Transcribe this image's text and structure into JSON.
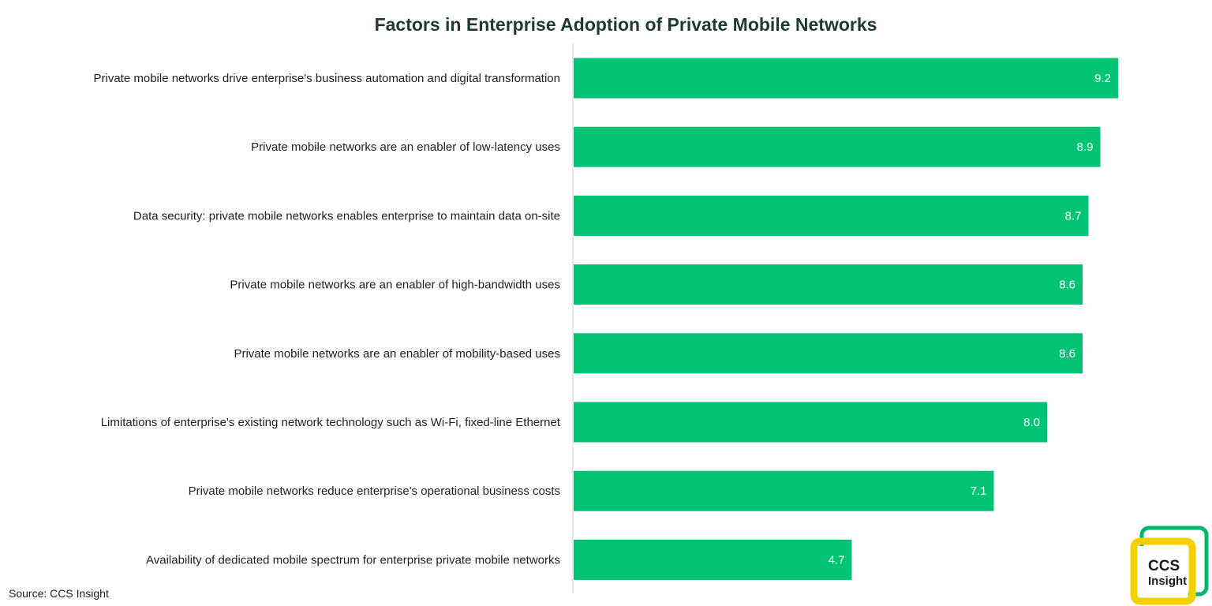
{
  "chart_data": {
    "type": "bar",
    "orientation": "horizontal",
    "title": "Factors in Enterprise Adoption of Private Mobile Networks",
    "xlabel": "",
    "ylabel": "",
    "xlim": [
      0,
      10
    ],
    "grid": false,
    "legend": "none",
    "categories": [
      "Private mobile networks drive enterprise's business automation and digital transformation",
      "Private mobile networks are an enabler of low-latency uses",
      "Data security: private mobile networks enables enterprise to maintain data on-site",
      "Private mobile networks are an enabler of high-bandwidth uses",
      "Private mobile networks are an enabler of mobility-based uses",
      "Limitations of enterprise's existing network technology such as Wi-Fi, fixed-line Ethernet",
      "Private mobile networks reduce enterprise's operational business costs",
      "Availability of dedicated mobile spectrum for enterprise private mobile networks"
    ],
    "values": [
      9.2,
      8.9,
      8.7,
      8.6,
      8.6,
      8.0,
      7.1,
      4.7
    ],
    "value_labels": [
      "9.2",
      "8.9",
      "8.7",
      "8.6",
      "8.6",
      "8.0",
      "7.1",
      "4.7"
    ],
    "bar_color": "#00c373",
    "axis_color": "#d0d0d0"
  },
  "source": "Source: CCS Insight",
  "logo": {
    "line1": "CCS",
    "line2": "Insight",
    "green": "#00b86b",
    "yellow": "#f5d000"
  }
}
